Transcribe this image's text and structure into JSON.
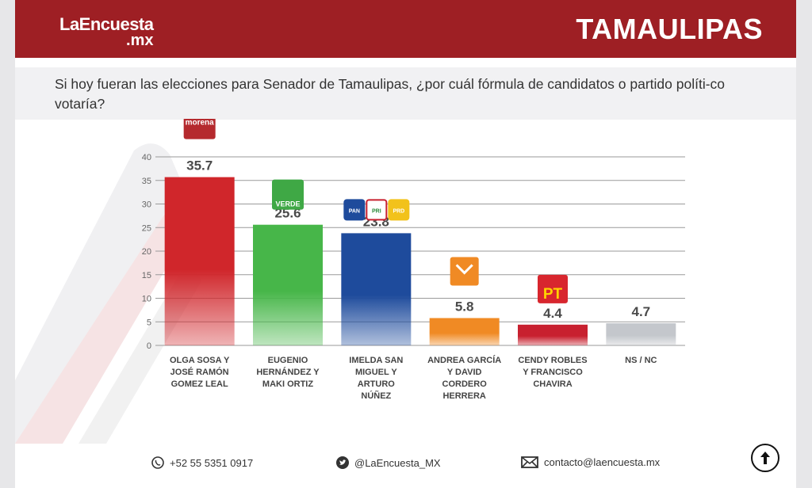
{
  "header": {
    "logo_line1": "LaEncuesta",
    "logo_line2": ".mx",
    "state": "TAMAULIPAS"
  },
  "question": "Si hoy fueran las elecciones para Senador de Tamaulipas, ¿por cuál fórmula de candidatos o partido políti-co votaría?",
  "chart_data": {
    "type": "bar",
    "categories": [
      [
        "OLGA SOSA Y",
        "JOSÉ RAMÓN",
        "GOMEZ LEAL"
      ],
      [
        "EUGENIO",
        "HERNÁNDEZ Y",
        "MAKI ORTIZ"
      ],
      [
        "IMELDA SAN",
        "MIGUEL Y",
        "ARTURO",
        "NÚÑEZ"
      ],
      [
        "ANDREA GARCÍA",
        "Y DAVID",
        "CORDERO",
        "HERRERA"
      ],
      [
        "CENDY ROBLES",
        "Y FRANCISCO",
        "CHAVIRA"
      ],
      [
        "NS / NC"
      ]
    ],
    "values": [
      35.7,
      25.6,
      23.8,
      5.8,
      4.4,
      4.7
    ],
    "value_labels": [
      "35.7",
      "25.6",
      "23.8",
      "5.8",
      "4.4",
      "4.7"
    ],
    "colors": [
      "#d0262b",
      "#47b649",
      "#1e4b9c",
      "#f08a24",
      "#c8202f",
      "#c4c7cc"
    ],
    "party_logos": [
      [
        "morena"
      ],
      [
        "VERDE"
      ],
      [
        "PAN",
        "PRI",
        "PRD"
      ],
      [
        "MC"
      ],
      [
        "PT"
      ],
      []
    ],
    "ylim": [
      0,
      40
    ],
    "yticks": [
      0,
      5,
      10,
      15,
      20,
      25,
      30,
      35,
      40
    ],
    "grid": true
  },
  "footer": {
    "phone": "+52 55 5351 0917",
    "twitter": "@LaEncuesta_MX",
    "email": "contacto@laencuesta.mx"
  }
}
